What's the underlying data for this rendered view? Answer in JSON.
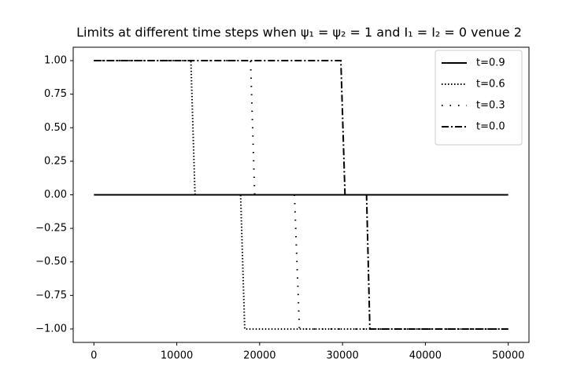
{
  "chart_data": {
    "type": "line",
    "title": "Limits at different time steps when ψ₁ = ψ₂ = 1 and I₁ = I₂ = 0 venue 2",
    "series": [
      {
        "name": "t=0.9",
        "color": "#000000",
        "linestyle": "solid",
        "x": [
          0,
          50000
        ],
        "values": [
          0,
          0
        ]
      },
      {
        "name": "t=0.6",
        "color": "#000000",
        "linestyle": "dotted",
        "x": [
          0,
          11700,
          12200,
          17700,
          18200,
          50000
        ],
        "values": [
          1,
          1,
          0,
          0,
          -1,
          -1
        ]
      },
      {
        "name": "t=0.3",
        "color": "#000000",
        "linestyle": "loosely dotted",
        "x": [
          0,
          18900,
          19400,
          24200,
          24800,
          50000
        ],
        "values": [
          1,
          1,
          0,
          0,
          -1,
          -1
        ]
      },
      {
        "name": "t=0.0",
        "color": "#000000",
        "linestyle": "dashdot",
        "x": [
          0,
          29800,
          30300,
          32900,
          33300,
          50000
        ],
        "values": [
          1,
          1,
          0,
          0,
          -1,
          -1
        ]
      }
    ],
    "xlim": [
      -2500,
      52500
    ],
    "ylim": [
      -1.1,
      1.1
    ],
    "xticks": [
      0,
      10000,
      20000,
      30000,
      40000,
      50000
    ],
    "yticks": [
      {
        "value": 1,
        "label": "1.00"
      },
      {
        "value": 0.75,
        "label": "0.75"
      },
      {
        "value": 0.5,
        "label": "0.50"
      },
      {
        "value": 0.25,
        "label": "0.25"
      },
      {
        "value": 0,
        "label": "0.00"
      },
      {
        "value": -0.25,
        "label": "−0.25"
      },
      {
        "value": -0.5,
        "label": "−0.50"
      },
      {
        "value": -0.75,
        "label": "−0.75"
      },
      {
        "value": -1,
        "label": "−1.00"
      }
    ],
    "legend": "upper right",
    "grid": false
  }
}
